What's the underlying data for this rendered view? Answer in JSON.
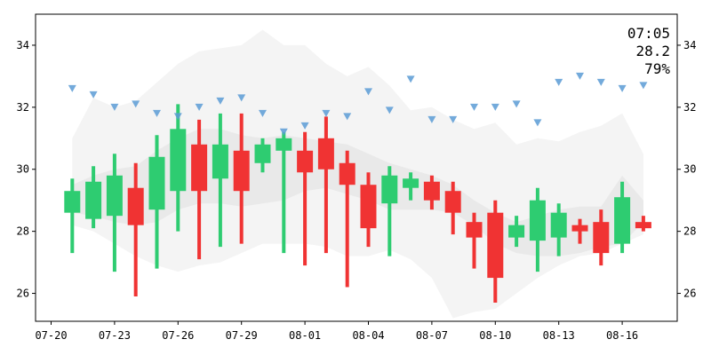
{
  "chart_data": {
    "type": "candlestick",
    "grid": false,
    "ylim": [
      25.1,
      35.0
    ],
    "yticks": [
      26,
      28,
      30,
      32,
      34
    ],
    "xticks": [
      {
        "label": "07-20",
        "day": 0
      },
      {
        "label": "07-23",
        "day": 3
      },
      {
        "label": "07-26",
        "day": 6
      },
      {
        "label": "07-29",
        "day": 9
      },
      {
        "label": "08-01",
        "day": 12
      },
      {
        "label": "08-04",
        "day": 15
      },
      {
        "label": "08-07",
        "day": 18
      },
      {
        "label": "08-10",
        "day": 21
      },
      {
        "label": "08-13",
        "day": 24
      },
      {
        "label": "08-16",
        "day": 27
      }
    ],
    "candles": [
      {
        "date": "07-21",
        "open": 28.6,
        "high": 29.7,
        "low": 27.3,
        "close": 29.3
      },
      {
        "date": "07-22",
        "open": 28.4,
        "high": 30.1,
        "low": 28.1,
        "close": 29.6
      },
      {
        "date": "07-23",
        "open": 28.5,
        "high": 30.5,
        "low": 26.7,
        "close": 29.8
      },
      {
        "date": "07-24",
        "open": 29.4,
        "high": 30.2,
        "low": 25.9,
        "close": 28.2
      },
      {
        "date": "07-25",
        "open": 28.7,
        "high": 31.1,
        "low": 26.8,
        "close": 30.4
      },
      {
        "date": "07-26",
        "open": 29.3,
        "high": 32.1,
        "low": 28.0,
        "close": 31.3
      },
      {
        "date": "07-27",
        "open": 30.8,
        "high": 31.6,
        "low": 27.1,
        "close": 29.3
      },
      {
        "date": "07-28",
        "open": 29.7,
        "high": 31.8,
        "low": 27.5,
        "close": 30.8
      },
      {
        "date": "07-29",
        "open": 30.6,
        "high": 31.8,
        "low": 27.6,
        "close": 29.3
      },
      {
        "date": "07-30",
        "open": 30.2,
        "high": 31.0,
        "low": 29.9,
        "close": 30.8
      },
      {
        "date": "07-31",
        "open": 30.6,
        "high": 31.2,
        "low": 27.3,
        "close": 31.0
      },
      {
        "date": "08-01",
        "open": 30.6,
        "high": 31.2,
        "low": 26.9,
        "close": 29.9
      },
      {
        "date": "08-02",
        "open": 31.0,
        "high": 31.7,
        "low": 27.3,
        "close": 30.0
      },
      {
        "date": "08-03",
        "open": 30.2,
        "high": 30.6,
        "low": 26.2,
        "close": 29.5
      },
      {
        "date": "08-04",
        "open": 29.5,
        "high": 29.9,
        "low": 27.5,
        "close": 28.1
      },
      {
        "date": "08-05",
        "open": 28.9,
        "high": 30.1,
        "low": 27.2,
        "close": 29.8
      },
      {
        "date": "08-06",
        "open": 29.4,
        "high": 29.9,
        "low": 29.0,
        "close": 29.7
      },
      {
        "date": "08-07",
        "open": 29.6,
        "high": 29.8,
        "low": 28.7,
        "close": 29.0
      },
      {
        "date": "08-08",
        "open": 29.3,
        "high": 29.6,
        "low": 27.9,
        "close": 28.6
      },
      {
        "date": "08-09",
        "open": 28.3,
        "high": 28.6,
        "low": 26.8,
        "close": 27.8
      },
      {
        "date": "08-10",
        "open": 28.6,
        "high": 29.0,
        "low": 25.7,
        "close": 26.5
      },
      {
        "date": "08-11",
        "open": 27.8,
        "high": 28.5,
        "low": 27.5,
        "close": 28.2
      },
      {
        "date": "08-12",
        "open": 27.7,
        "high": 29.4,
        "low": 26.7,
        "close": 29.0
      },
      {
        "date": "08-13",
        "open": 27.8,
        "high": 28.9,
        "low": 27.2,
        "close": 28.6
      },
      {
        "date": "08-14",
        "open": 28.2,
        "high": 28.4,
        "low": 27.6,
        "close": 28.0
      },
      {
        "date": "08-15",
        "open": 28.3,
        "high": 28.7,
        "low": 26.9,
        "close": 27.3
      },
      {
        "date": "08-16",
        "open": 27.6,
        "high": 29.6,
        "low": 27.3,
        "close": 29.1
      },
      {
        "date": "08-17",
        "open": 28.3,
        "high": 28.5,
        "low": 28.0,
        "close": 28.1
      }
    ],
    "markers": [
      32.6,
      32.4,
      32.0,
      32.1,
      31.8,
      31.7,
      32.0,
      32.2,
      32.3,
      31.8,
      31.2,
      31.4,
      31.8,
      31.7,
      32.5,
      31.9,
      32.9,
      31.6,
      31.6,
      32.0,
      32.0,
      32.1,
      31.5,
      32.8,
      33.0,
      32.8,
      32.6,
      32.7
    ],
    "outer_band": {
      "upper": [
        31.0,
        32.3,
        32.0,
        32.2,
        32.8,
        33.4,
        33.8,
        33.9,
        34.0,
        34.5,
        34.0,
        34.0,
        33.4,
        33.0,
        33.3,
        32.7,
        31.9,
        32.0,
        31.6,
        31.3,
        31.5,
        30.8,
        31.0,
        30.9,
        31.2,
        31.4,
        31.8,
        30.5
      ],
      "lower": [
        28.2,
        28.0,
        27.6,
        27.2,
        26.9,
        26.7,
        26.9,
        27.0,
        27.3,
        27.6,
        27.6,
        27.6,
        27.5,
        27.2,
        27.2,
        27.4,
        27.1,
        26.5,
        25.2,
        25.4,
        25.5,
        26.0,
        26.5,
        26.9,
        27.2,
        27.3,
        27.6,
        27.9
      ]
    },
    "inner_band": {
      "upper": [
        29.5,
        29.8,
        30.0,
        30.1,
        30.6,
        31.0,
        31.3,
        31.3,
        31.1,
        31.0,
        31.1,
        31.0,
        30.9,
        30.8,
        30.5,
        30.2,
        30.0,
        29.8,
        29.5,
        29.0,
        28.6,
        28.3,
        28.5,
        28.7,
        28.8,
        28.8,
        29.8,
        29.0
      ],
      "lower": [
        28.6,
        28.5,
        28.3,
        28.2,
        28.3,
        28.7,
        28.9,
        28.9,
        28.8,
        28.9,
        29.0,
        29.3,
        29.4,
        29.2,
        29.0,
        28.7,
        28.7,
        28.7,
        28.6,
        28.2,
        27.6,
        27.3,
        27.2,
        27.2,
        27.3,
        27.5,
        27.6,
        28.3
      ]
    },
    "colors": {
      "up": "#2ecc71",
      "down": "#f03333",
      "marker": "#5b9bd5",
      "band_outer": "#f3f3f3",
      "band_inner": "#e4e4e4"
    }
  },
  "readout": {
    "time": "07:05",
    "value": "28.2",
    "percent": "79%"
  }
}
